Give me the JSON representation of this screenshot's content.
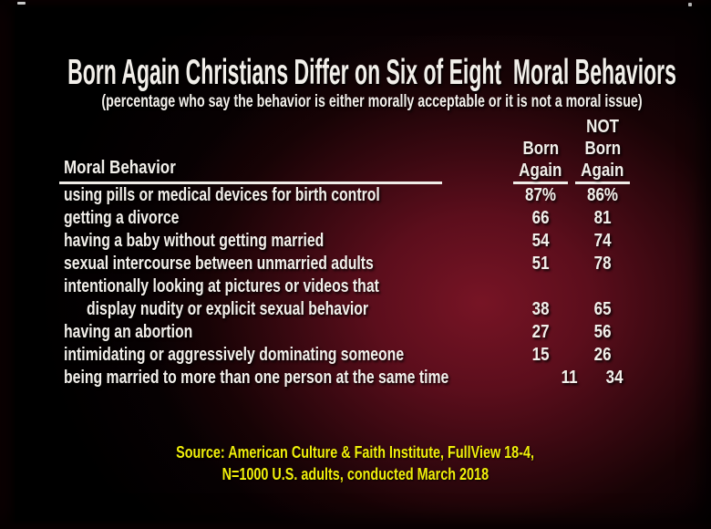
{
  "slide": {
    "title": "Born Again Christians Differ on Six of Eight  Moral Behaviors",
    "subtitle": "(percentage who say the behavior is either morally acceptable or it is not a moral issue)"
  },
  "table": {
    "behavior_header": "Moral Behavior",
    "col_born_again": [
      "Born",
      "Again"
    ],
    "col_not_born_again": [
      "NOT",
      "Born",
      "Again"
    ],
    "rows": [
      {
        "lines": [
          "using pills or medical devices for birth control"
        ],
        "born_again": "87%",
        "not_born_again": "86%"
      },
      {
        "lines": [
          "getting a divorce"
        ],
        "born_again": "66",
        "not_born_again": "81"
      },
      {
        "lines": [
          "having a baby without getting married"
        ],
        "born_again": "54",
        "not_born_again": "74"
      },
      {
        "lines": [
          "sexual intercourse between unmarried adults"
        ],
        "born_again": "51",
        "not_born_again": "78"
      },
      {
        "lines": [
          "intentionally looking at pictures or videos that",
          "display nudity or explicit sexual behavior"
        ],
        "born_again": "38",
        "not_born_again": "65"
      },
      {
        "lines": [
          "having an abortion"
        ],
        "born_again": "27",
        "not_born_again": "56"
      },
      {
        "lines": [
          "intimidating or aggressively dominating someone"
        ],
        "born_again": "15",
        "not_born_again": "26"
      },
      {
        "lines": [
          "being married to more than one person at the same time"
        ],
        "born_again": "11",
        "not_born_again": "34"
      }
    ]
  },
  "source": {
    "line1": "Source: American Culture & Faith Institute, FullView 18-4,",
    "line2": "N=1000 U.S. adults, conducted March 2018"
  },
  "colors": {
    "background_base": "#000000",
    "background_glow": "#771425",
    "text": "#f2efea",
    "source_text": "#f0ee0a",
    "underline": "#efece7"
  },
  "chart_data": {
    "type": "table",
    "title": "Born Again Christians Differ on Six of Eight Moral Behaviors",
    "subtitle": "(percentage who say the behavior is either morally acceptable or it is not a moral issue)",
    "columns": [
      "Moral Behavior",
      "Born Again",
      "NOT Born Again"
    ],
    "rows": [
      [
        "using pills or medical devices for birth control",
        87,
        86
      ],
      [
        "getting a divorce",
        66,
        81
      ],
      [
        "having a baby without getting married",
        54,
        74
      ],
      [
        "sexual intercourse between unmarried adults",
        51,
        78
      ],
      [
        "intentionally looking at pictures or videos that display nudity or explicit sexual behavior",
        38,
        65
      ],
      [
        "having an abortion",
        27,
        56
      ],
      [
        "intimidating or aggressively dominating someone",
        15,
        26
      ],
      [
        "being married to more than one person at the same time",
        11,
        34
      ]
    ],
    "unit": "percent",
    "legend_position": "none",
    "grid": false,
    "source": "Source: American Culture & Faith Institute, FullView 18-4, N=1000 U.S. adults, conducted March 2018"
  }
}
